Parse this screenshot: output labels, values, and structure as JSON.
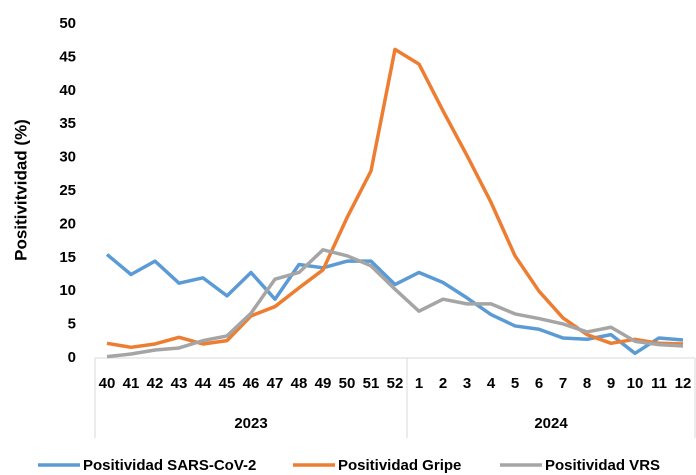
{
  "chart_data": {
    "type": "line",
    "y_label": "Positivitvidad (%)",
    "categories": [
      "40",
      "41",
      "42",
      "43",
      "44",
      "45",
      "46",
      "47",
      "48",
      "49",
      "50",
      "51",
      "52",
      "1",
      "2",
      "3",
      "4",
      "5",
      "6",
      "7",
      "8",
      "9",
      "10",
      "11",
      "12"
    ],
    "x_groups": [
      "2023",
      "2024"
    ],
    "series": [
      {
        "name": "Positividad SARS-CoV-2",
        "color": "#5b9bd5",
        "values": [
          15.5,
          12.5,
          14.5,
          11.2,
          12,
          9.3,
          12.8,
          8.8,
          14,
          13.5,
          14.5,
          14.5,
          11,
          12.8,
          11.3,
          9,
          6.5,
          4.8,
          4.3,
          3,
          2.8,
          3.5,
          0.7,
          3,
          2.7
        ]
      },
      {
        "name": "Positividad Gripe",
        "color": "#ed7d31",
        "values": [
          2.2,
          1.6,
          2.1,
          3.1,
          2.1,
          2.6,
          6.3,
          7.7,
          10.5,
          13.2,
          21,
          28,
          46.2,
          44,
          37,
          30.3,
          23.3,
          15.3,
          10,
          6,
          3.5,
          2.2,
          2.8,
          2.2,
          2.1
        ]
      },
      {
        "name": "Positividad VRS",
        "color": "#a5a5a5",
        "values": [
          0.2,
          0.6,
          1.2,
          1.5,
          2.6,
          3.3,
          6.7,
          11.8,
          12.8,
          16.2,
          15.3,
          13.8,
          10.3,
          7,
          8.8,
          8.1,
          8.1,
          6.6,
          5.9,
          5.1,
          3.9,
          4.6,
          2.5,
          2,
          1.8
        ]
      }
    ],
    "ylim": [
      0,
      50
    ],
    "yticks": [
      0,
      5,
      10,
      15,
      20,
      25,
      30,
      35,
      40,
      45,
      50
    ],
    "legend": "bottom"
  }
}
